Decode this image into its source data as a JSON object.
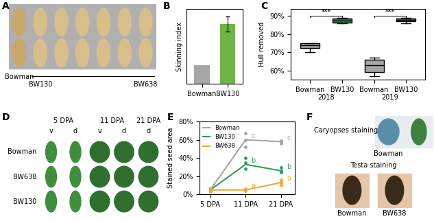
{
  "chart_data": [
    {
      "panel": "B",
      "type": "bar",
      "categories": [
        "Bowman",
        "BW130"
      ],
      "values": [
        20,
        64
      ],
      "errors": [
        null,
        8
      ],
      "colors": [
        "#a6a6a6",
        "#70b447"
      ],
      "y_label": "Skinning index",
      "ylim": [
        0,
        80
      ],
      "yticks": [],
      "tick_labels": "x"
    },
    {
      "panel": "C",
      "type": "box",
      "categories": [
        "Bowman",
        "BW130",
        "Bowman",
        "BW130"
      ],
      "groups": [
        {
          "label": "2018",
          "members": [
            0,
            1
          ]
        },
        {
          "label": "2019",
          "members": [
            2,
            3
          ]
        }
      ],
      "min": [
        70,
        86,
        57,
        86
      ],
      "q1": [
        72.5,
        86.5,
        59,
        87
      ],
      "median": [
        74,
        87.5,
        63,
        88
      ],
      "q3": [
        75,
        88.5,
        66,
        88.5
      ],
      "max": [
        75,
        89,
        67,
        89
      ],
      "colors": [
        "#a6a6a6",
        "#2e8b57",
        "#a6a6a6",
        "#2e8b57"
      ],
      "y_label": "Hull removed",
      "ylim": [
        55,
        94
      ],
      "yticks": [
        {
          "value": 60,
          "label": "60%"
        },
        {
          "value": 70,
          "label": "70%"
        },
        {
          "value": 80,
          "label": "80%"
        },
        {
          "value": 90,
          "label": "90%"
        }
      ],
      "annotations": [
        {
          "text": "***",
          "between": [
            0,
            1
          ]
        },
        {
          "text": "***",
          "between": [
            2,
            3
          ]
        }
      ]
    },
    {
      "panel": "E",
      "type": "line",
      "categories": [
        "5 DPA",
        "11 DPA",
        "21 DPA"
      ],
      "series": [
        {
          "name": "Bowman",
          "color": "#a6a6a6",
          "values": [
            5,
            60,
            58
          ],
          "replicates": [
            [
              4,
              5,
              6
            ],
            [
              52,
              60,
              67
            ],
            [
              56,
              58,
              59
            ]
          ],
          "letters": [
            null,
            "c",
            "c"
          ]
        },
        {
          "name": "BW130",
          "color": "#2e9e5b",
          "values": [
            5,
            33,
            26
          ],
          "replicates": [
            [
              4,
              5,
              6
            ],
            [
              28,
              35,
              40
            ],
            [
              24,
              26,
              30
            ]
          ],
          "letters": [
            null,
            "b",
            "b"
          ]
        },
        {
          "name": "BW638",
          "color": "#f0a830",
          "values": [
            5,
            5,
            13
          ],
          "replicates": [
            [
              3,
              5,
              7
            ],
            [
              4,
              5,
              6
            ],
            [
              10,
              13,
              16
            ]
          ],
          "letters": [
            null,
            "a",
            "a"
          ]
        }
      ],
      "y_label": "Stained seed area",
      "ylim": [
        0,
        80
      ],
      "yticks": [
        {
          "value": 0,
          "label": "0%"
        },
        {
          "value": 20,
          "label": "20%"
        },
        {
          "value": 40,
          "label": "40%"
        },
        {
          "value": 60,
          "label": "60%"
        },
        {
          "value": 80,
          "label": "80%"
        }
      ],
      "legend": "upper left",
      "marker": "o"
    }
  ],
  "photo_panels": [
    {
      "panel": "A",
      "first_label": "Bowman",
      "group_start": "BW130",
      "group_end": "BW638"
    },
    {
      "panel": "D",
      "column_headers": [
        "5 DPA",
        "11 DPA",
        "21 DPA"
      ],
      "header_columns": [
        [
          0,
          1
        ],
        [
          2,
          3
        ],
        [
          4
        ]
      ],
      "sub_headers": [
        "v",
        "d",
        "v",
        "d",
        "d"
      ],
      "rows": [
        "Bowman",
        "BW638",
        "BW130"
      ]
    },
    {
      "panel": "F",
      "top_title": "Caryopses staining",
      "top_labels": [
        "Bowman"
      ],
      "bottom_title": "Testa staining",
      "bottom_labels": [
        "Bowman",
        "BW638"
      ]
    }
  ]
}
